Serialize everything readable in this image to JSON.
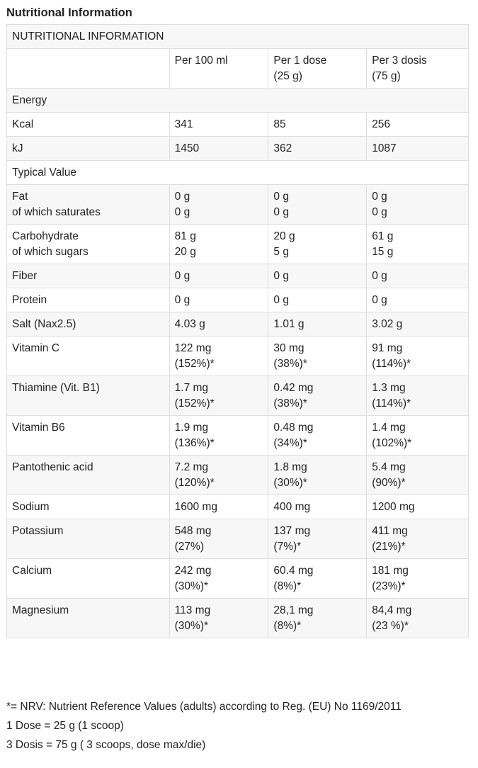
{
  "heading": "Nutritional Information",
  "table": {
    "caption": "NUTRITIONAL INFORMATION",
    "columns": [
      "",
      "Per 100 ml",
      "Per 1 dose\n(25 g)",
      "Per 3 dosis\n(75 g)"
    ],
    "rows": [
      {
        "section": "Energy"
      },
      {
        "cells": [
          "Kcal",
          "341",
          "85",
          "256"
        ]
      },
      {
        "cells": [
          "kJ",
          "1450",
          "362",
          "1087"
        ]
      },
      {
        "section": "Typical Value"
      },
      {
        "cells": [
          "Fat\nof which saturates",
          "0 g\n0 g",
          "0 g\n0 g",
          "0 g\n0 g"
        ]
      },
      {
        "cells": [
          "Carbohydrate\nof which sugars",
          "81 g\n20 g",
          "20 g\n5 g",
          "61 g\n15 g"
        ]
      },
      {
        "cells": [
          "Fiber",
          "0 g",
          "0 g",
          "0 g"
        ]
      },
      {
        "cells": [
          "Protein",
          "0 g",
          "0 g",
          "0 g"
        ]
      },
      {
        "cells": [
          "Salt (Nax2.5)",
          "4.03 g",
          "1.01 g",
          "3.02 g"
        ]
      },
      {
        "cells": [
          "Vitamin C",
          "122 mg\n(152%)*",
          "30 mg\n(38%)*",
          "91 mg\n(114%)*"
        ]
      },
      {
        "cells": [
          "Thiamine (Vit. B1)",
          "1.7 mg\n(152%)*",
          "0.42 mg\n(38%)*",
          "1.3 mg\n(114%)*"
        ]
      },
      {
        "cells": [
          "Vitamin B6",
          "1.9 mg\n(136%)*",
          "0.48 mg\n(34%)*",
          "1.4 mg\n(102%)*"
        ]
      },
      {
        "cells": [
          "Pantothenic acid",
          "7.2 mg\n(120%)*",
          "1.8 mg\n(30%)*",
          "5.4 mg\n(90%)*"
        ]
      },
      {
        "cells": [
          "Sodium",
          "1600 mg",
          "400 mg",
          "1200 mg"
        ]
      },
      {
        "cells": [
          "Potassium",
          "548 mg\n(27%)",
          "137 mg\n(7%)*",
          "411 mg\n(21%)*"
        ]
      },
      {
        "cells": [
          "Calcium",
          "242 mg\n(30%)*",
          "60.4 mg\n(8%)*",
          "181 mg\n(23%)*"
        ]
      },
      {
        "cells": [
          "Magnesium",
          "113 mg\n(30%)*",
          "28,1 mg\n(8%)*",
          "84,4 mg\n(23 %)*"
        ]
      }
    ]
  },
  "notes": [
    "*= NRV: Nutrient Reference Values (adults) according to Reg. (EU) No 1169/2011",
    "1 Dose = 25 g (1 scoop)",
    "3 Dosis = 75 g ( 3 scoops, dose max/die)"
  ]
}
